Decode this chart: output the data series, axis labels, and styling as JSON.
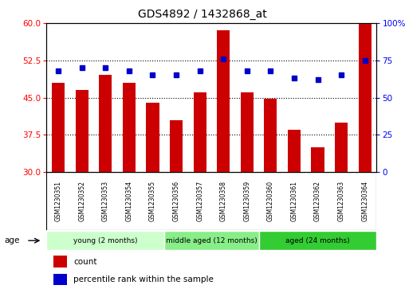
{
  "title": "GDS4892 / 1432868_at",
  "samples": [
    "GSM1230351",
    "GSM1230352",
    "GSM1230353",
    "GSM1230354",
    "GSM1230355",
    "GSM1230356",
    "GSM1230357",
    "GSM1230358",
    "GSM1230359",
    "GSM1230360",
    "GSM1230361",
    "GSM1230362",
    "GSM1230363",
    "GSM1230364"
  ],
  "counts": [
    48.0,
    46.5,
    49.5,
    48.0,
    44.0,
    40.5,
    46.0,
    58.5,
    46.0,
    44.8,
    38.5,
    35.0,
    40.0,
    60.0
  ],
  "percentiles": [
    68,
    70,
    70,
    68,
    65,
    65,
    68,
    76,
    68,
    68,
    63,
    62,
    65,
    75
  ],
  "ylim_left": [
    30,
    60
  ],
  "ylim_right": [
    0,
    100
  ],
  "yticks_left": [
    30,
    37.5,
    45,
    52.5,
    60
  ],
  "yticks_right": [
    0,
    25,
    50,
    75,
    100
  ],
  "bar_color": "#cc0000",
  "dot_color": "#0000cc",
  "groups": [
    {
      "label": "young (2 months)",
      "start": 0,
      "end": 4,
      "color": "#ccffcc"
    },
    {
      "label": "middle aged (12 months)",
      "start": 5,
      "end": 8,
      "color": "#88ee88"
    },
    {
      "label": "aged (24 months)",
      "start": 9,
      "end": 13,
      "color": "#33cc33"
    }
  ],
  "age_label": "age",
  "legend_count_label": "count",
  "legend_percentile_label": "percentile rank within the sample",
  "background_color": "#ffffff",
  "sample_area_color": "#cccccc",
  "title_fontsize": 10,
  "axis_fontsize": 7.5,
  "label_fontsize": 7.5
}
